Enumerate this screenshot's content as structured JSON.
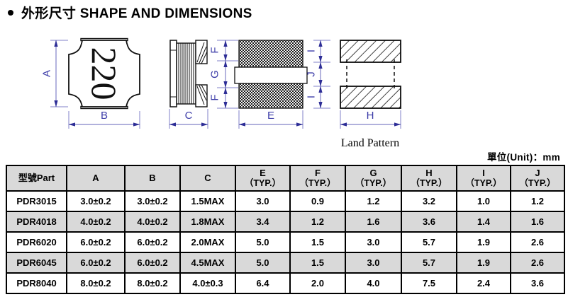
{
  "title": {
    "text": "外形尺寸 SHAPE AND DIMENSIONS"
  },
  "unit_label": "單位(Unit)：mm",
  "drawings": {
    "top_view_marking": "220",
    "land_pattern_label": "Land Pattern",
    "dims": {
      "A": "A",
      "B": "B",
      "C": "C",
      "E": "E",
      "F": "F",
      "G": "G",
      "H": "H",
      "I": "I",
      "J": "J"
    },
    "colors": {
      "outline": "#111111",
      "dim_line": "#8282c8",
      "dim_arrow": "#2d2d96",
      "dim_text": "#3c3ca8"
    }
  },
  "table": {
    "columns": [
      {
        "key": "part",
        "label": "型號Part",
        "sub": ""
      },
      {
        "key": "A",
        "label": "A",
        "sub": ""
      },
      {
        "key": "B",
        "label": "B",
        "sub": ""
      },
      {
        "key": "C",
        "label": "C",
        "sub": ""
      },
      {
        "key": "E",
        "label": "E",
        "sub": "（TYP.）"
      },
      {
        "key": "F",
        "label": "F",
        "sub": "（TYP.）"
      },
      {
        "key": "G",
        "label": "G",
        "sub": "（TYP.）"
      },
      {
        "key": "H",
        "label": "H",
        "sub": "（TYP.）"
      },
      {
        "key": "I",
        "label": "I",
        "sub": "（TYP.）"
      },
      {
        "key": "J",
        "label": "J",
        "sub": "（TYP.）"
      }
    ],
    "rows": [
      {
        "part": "PDR3015",
        "values": [
          "3.0±0.2",
          "3.0±0.2",
          "1.5MAX",
          "3.0",
          "0.9",
          "1.2",
          "3.2",
          "1.0",
          "1.2"
        ]
      },
      {
        "part": "PDR4018",
        "values": [
          "4.0±0.2",
          "4.0±0.2",
          "1.8MAX",
          "3.4",
          "1.2",
          "1.6",
          "3.6",
          "1.4",
          "1.6"
        ]
      },
      {
        "part": "PDR6020",
        "values": [
          "6.0±0.2",
          "6.0±0.2",
          "2.0MAX",
          "5.0",
          "1.5",
          "3.0",
          "5.7",
          "1.9",
          "2.6"
        ]
      },
      {
        "part": "PDR6045",
        "values": [
          "6.0±0.2",
          "6.0±0.2",
          "4.5MAX",
          "5.0",
          "1.5",
          "3.0",
          "5.7",
          "1.9",
          "2.6"
        ]
      },
      {
        "part": "PDR8040",
        "values": [
          "8.0±0.2",
          "8.0±0.2",
          "4.0±0.3",
          "6.4",
          "2.0",
          "4.0",
          "7.5",
          "2.4",
          "3.6"
        ]
      }
    ]
  }
}
